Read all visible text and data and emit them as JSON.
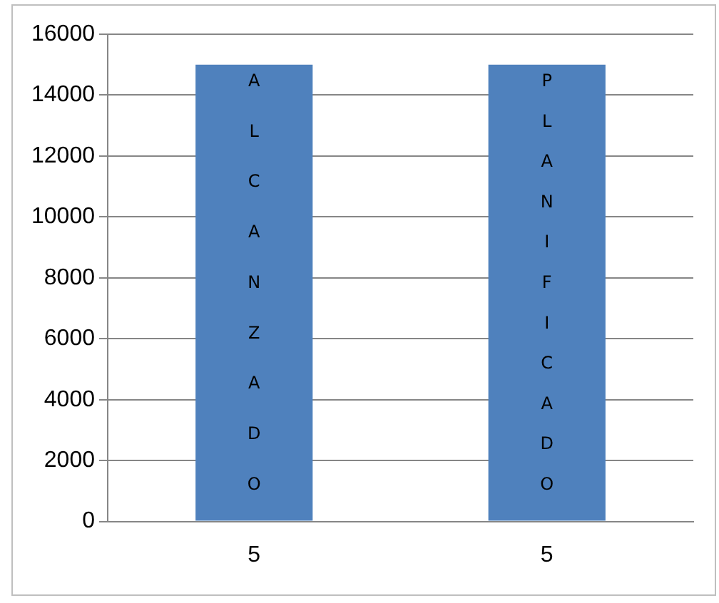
{
  "chart_data": {
    "type": "bar",
    "categories": [
      "5",
      "5"
    ],
    "values": [
      15000,
      15000
    ],
    "color": "#4f81bd",
    "ylim": [
      0,
      16000
    ],
    "yticks": [
      0,
      2000,
      4000,
      6000,
      8000,
      10000,
      12000,
      14000,
      16000
    ],
    "grid": "y",
    "legend": false,
    "annotations": [
      "ALCANZADO",
      "PLANIFICADO"
    ]
  }
}
